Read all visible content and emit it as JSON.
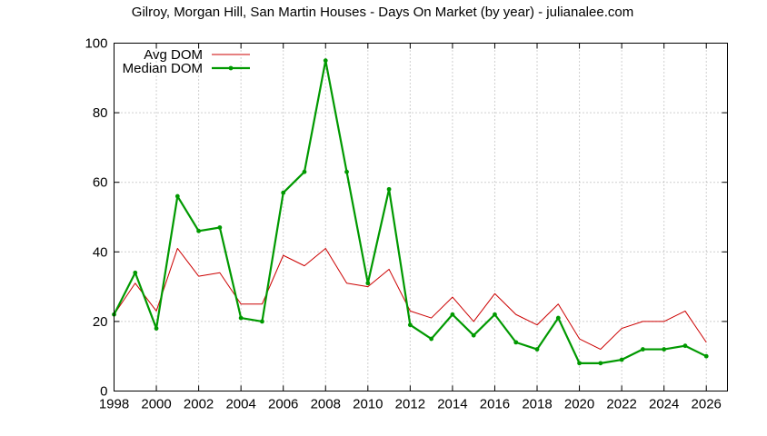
{
  "chart_data": {
    "type": "line",
    "title": "Gilroy, Morgan Hill, San Martin Houses - Days On Market (by year) - julianalee.com",
    "xlabel": "",
    "ylabel": "",
    "xlim": [
      1998,
      2027
    ],
    "ylim": [
      0,
      100
    ],
    "x_ticks": [
      1998,
      2000,
      2002,
      2004,
      2006,
      2008,
      2010,
      2012,
      2014,
      2016,
      2018,
      2020,
      2022,
      2024,
      2026
    ],
    "y_ticks": [
      0,
      20,
      40,
      60,
      80,
      100
    ],
    "grid": true,
    "legend_position": "top-left",
    "x": [
      1998,
      1999,
      2000,
      2001,
      2002,
      2003,
      2004,
      2005,
      2006,
      2007,
      2008,
      2009,
      2010,
      2011,
      2012,
      2013,
      2014,
      2015,
      2016,
      2017,
      2018,
      2019,
      2020,
      2021,
      2022,
      2023,
      2024,
      2025,
      2026
    ],
    "series": [
      {
        "name": "Avg DOM",
        "color": "#cc0000",
        "values": [
          22,
          31,
          23,
          41,
          33,
          34,
          25,
          25,
          39,
          36,
          41,
          31,
          30,
          35,
          23,
          21,
          27,
          20,
          28,
          22,
          19,
          25,
          15,
          12,
          18,
          20,
          20,
          23,
          14
        ]
      },
      {
        "name": "Median DOM",
        "color": "#009900",
        "values": [
          22,
          34,
          18,
          56,
          46,
          47,
          21,
          20,
          57,
          63,
          95,
          63,
          31,
          58,
          19,
          15,
          22,
          16,
          22,
          14,
          12,
          21,
          8,
          8,
          9,
          12,
          12,
          13,
          10
        ]
      }
    ]
  }
}
